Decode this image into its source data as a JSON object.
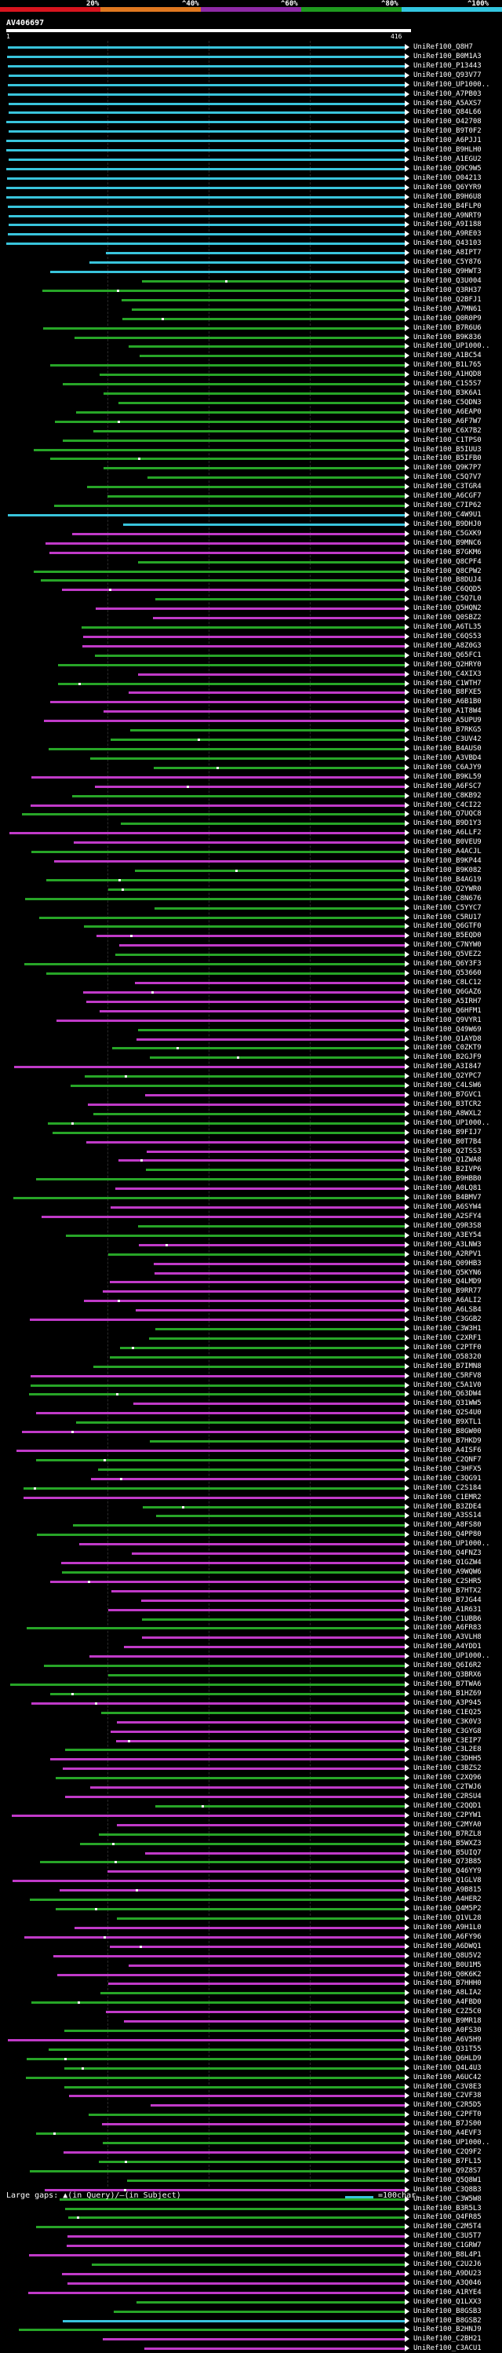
{
  "scale": {
    "labels": [
      "20%",
      "^40%",
      "^60%",
      "^80%",
      "^100%"
    ],
    "colors": [
      "#d9141e",
      "#e07820",
      "#8f2aa6",
      "#1f9a1f",
      "#33c6e0"
    ]
  },
  "query": {
    "name": "AV406697",
    "start": "1",
    "end": "416"
  },
  "colors": {
    "high": "#39c4dc",
    "mid": "#27a527",
    "low": "#c03ac8",
    "arrow": "#ffffff"
  },
  "hits": [
    "UniRef100_Q8H7",
    "UniRef100_B0M1A3",
    "UniRef100_P13443",
    "UniRef100_Q93V77",
    "UniRef100_UP1000..",
    "UniRef100_A7PB03",
    "UniRef100_A5AXS7",
    "UniRef100_Q84L66",
    "UniRef100_O42708",
    "UniRef100_B9T0F2",
    "UniRef100_A6PJJ1",
    "UniRef100_B9HLH0",
    "UniRef100_A1EGU2",
    "UniRef100_Q9C9W5",
    "UniRef100_O04213",
    "UniRef100_Q6YYR9",
    "UniRef100_B9H6U8",
    "UniRef100_B4FLP0",
    "UniRef100_A9NRT9",
    "UniRef100_A9I188",
    "UniRef100_A9RE03",
    "UniRef100_Q43103",
    "UniRef100_A8IPT7",
    "UniRef100_C5Y876",
    "UniRef100_Q9HWT3",
    "UniRef100_Q3U004",
    "UniRef100_Q3RH37",
    "UniRef100_Q2BFJ1",
    "UniRef100_A7MN61",
    "UniRef100_Q0R0P9",
    "UniRef100_B7R6U6",
    "UniRef100_B9K836",
    "UniRef100_UP1000..",
    "UniRef100_A1BC54",
    "UniRef100_B1L765",
    "UniRef100_A1HQD8",
    "UniRef100_C1S5S7",
    "UniRef100_B3K6A1",
    "UniRef100_C5QDN3",
    "UniRef100_A6EAP0",
    "UniRef100_A6F7W7",
    "UniRef100_C6X7B2",
    "UniRef100_C1TPS0",
    "UniRef100_B5IUU3",
    "UniRef100_B5IFB0",
    "UniRef100_Q9K7P7",
    "UniRef100_C5Q7V7",
    "UniRef100_C3TGR4",
    "UniRef100_A6CGF7",
    "UniRef100_C7IP62",
    "UniRef100_C4W9U1",
    "UniRef100_B9DHJ0",
    "UniRef100_C5GXK9",
    "UniRef100_B9MNC6",
    "UniRef100_B7GKM6",
    "UniRef100_Q8CPF4",
    "UniRef100_Q8CPW2",
    "UniRef100_B8DUJ4",
    "UniRef100_C6QQD5",
    "UniRef100_C5Q7L0",
    "UniRef100_Q5HQN2",
    "UniRef100_Q0SBZ2",
    "UniRef100_A6TL35",
    "UniRef100_C6QS53",
    "UniRef100_A8Z0G3",
    "UniRef100_Q65FC1",
    "UniRef100_Q2HRY0",
    "UniRef100_C4XIX3",
    "UniRef100_C1WTH7",
    "UniRef100_B8FXE5",
    "UniRef100_A6B1B0",
    "UniRef100_A1T8W4",
    "UniRef100_A5UPU9",
    "UniRef100_B7RKG5",
    "UniRef100_C3UV42",
    "UniRef100_B4AUS0",
    "UniRef100_A3VBD4",
    "UniRef100_C6AJY9",
    "UniRef100_B9KL59",
    "UniRef100_A6FSC7",
    "UniRef100_C8KB92",
    "UniRef100_C4CI22",
    "UniRef100_Q7UQC8",
    "UniRef100_B9D1Y3",
    "UniRef100_A6LLF2",
    "UniRef100_B0VEU9",
    "UniRef100_A4ACJL",
    "UniRef100_B9KP44",
    "UniRef100_B9K082",
    "UniRef100_B4AG19",
    "UniRef100_Q2YWR0",
    "UniRef100_C8N676",
    "UniRef100_C5YYC7",
    "UniRef100_C5RU17",
    "UniRef100_Q6GTF0",
    "UniRef100_B5EQD0",
    "UniRef100_C7NYW0",
    "UniRef100_Q5VEZ2",
    "UniRef100_Q6Y3F3",
    "UniRef100_Q53660",
    "UniRef100_C8LC12",
    "UniRef100_Q6GAZ6",
    "UniRef100_A5IRH7",
    "UniRef100_Q6HFM1",
    "UniRef100_Q9VYR1",
    "UniRef100_Q49W69",
    "UniRef100_Q1AYD8",
    "UniRef100_C0ZKT9",
    "UniRef100_B2GJF9",
    "UniRef100_A3I847",
    "UniRef100_Q2YPC7",
    "UniRef100_C4LSW6",
    "UniRef100_B7GVC1",
    "UniRef100_B3TCR2",
    "UniRef100_A8WXL2",
    "UniRef100_UP1000..",
    "UniRef100_B9FIJ7",
    "UniRef100_B0T7B4",
    "UniRef100_Q2TSS3",
    "UniRef100_Q1ZWA8",
    "UniRef100_B2IVP6",
    "UniRef100_B9HBB0",
    "UniRef100_A0LQ81",
    "UniRef100_B4BMV7",
    "UniRef100_A6SYW4",
    "UniRef100_A2SFY4",
    "UniRef100_Q9R3S8",
    "UniRef100_A3EY54",
    "UniRef100_A3LNW3",
    "UniRef100_A2RPV1",
    "UniRef100_Q09HB3",
    "UniRef100_Q5KYN6",
    "UniRef100_Q4LMD9",
    "UniRef100_B9RR77",
    "UniRef100_A6ALI2",
    "UniRef100_A6LSB4",
    "UniRef100_C3GGB2",
    "UniRef100_C3W3H1",
    "UniRef100_C2XRF1",
    "UniRef100_C2PTF0",
    "UniRef100_O58320",
    "UniRef100_B7IMN8",
    "UniRef100_C5RFV8",
    "UniRef100_C5A1V0",
    "UniRef100_Q63DW4",
    "UniRef100_Q31WW5",
    "UniRef100_Q2S4U0",
    "UniRef100_B9XTL1",
    "UniRef100_B8GW00",
    "UniRef100_B7HKD9",
    "UniRef100_A4ISF6",
    "UniRef100_C2QNF7",
    "UniRef100_C3HFX5",
    "UniRef100_C3QG91",
    "UniRef100_C2S184",
    "UniRef100_C1EMR2",
    "UniRef100_B3ZDE4",
    "UniRef100_A3SS14",
    "UniRef100_A8FS80",
    "UniRef100_Q4PP80",
    "UniRef100_UP1000..",
    "UniRef100_Q4FNZ3",
    "UniRef100_Q1GZW4",
    "UniRef100_A9WQW6",
    "UniRef100_C2SHR5",
    "UniRef100_B7HTX2",
    "UniRef100_B7JG44",
    "UniRef100_A1R631",
    "UniRef100_C1UBB6",
    "UniRef100_A6FR83",
    "UniRef100_A3VLH8",
    "UniRef100_A4YDD1",
    "UniRef100_UP1000..",
    "UniRef100_Q6I6R2",
    "UniRef100_Q3BRX6",
    "UniRef100_B7TWA6",
    "UniRef100_B1HZ69",
    "UniRef100_A3P945",
    "UniRef100_C1EQ25",
    "UniRef100_C3K0V3",
    "UniRef100_C3GYG8",
    "UniRef100_C3EIP7",
    "UniRef100_C3L2E8",
    "UniRef100_C3DHH5",
    "UniRef100_C3BZS2",
    "UniRef100_C2XQ96",
    "UniRef100_C2TWJ6",
    "UniRef100_C2RSU4",
    "UniRef100_C2QQD1",
    "UniRef100_C2PYW1",
    "UniRef100_C2MYA0",
    "UniRef100_B7RZL8",
    "UniRef100_B5WXZ3",
    "UniRef100_B5UIQ7",
    "UniRef100_Q73B85",
    "UniRef100_Q46YY9",
    "UniRef100_Q1GLV8",
    "UniRef100_A9B815",
    "UniRef100_A4HER2",
    "UniRef100_Q4M5P2",
    "UniRef100_Q1VL28",
    "UniRef100_A9H1L0",
    "UniRef100_A6FY96",
    "UniRef100_A6DWQ1",
    "UniRef100_Q8U5V2",
    "UniRef100_B0U1M5",
    "UniRef100_Q0K6K2",
    "UniRef100_B7HHH0",
    "UniRef100_A8LIA2",
    "UniRef100_A4FBD0",
    "UniRef100_C2Z5C0",
    "UniRef100_B9MR18",
    "UniRef100_A0FS30",
    "UniRef100_A6V5H9",
    "UniRef100_Q31T55",
    "UniRef100_Q6HLD9",
    "UniRef100_Q4L4U3",
    "UniRef100_A6UC42",
    "UniRef100_C3V8E3",
    "UniRef100_C2VF38",
    "UniRef100_C2R5D5",
    "UniRef100_C2PFT0",
    "UniRef100_B7JS00",
    "UniRef100_A4EVF3",
    "UniRef100_UP1000..",
    "UniRef100_C2Q9F2",
    "UniRef100_B7FL15",
    "UniRef100_Q9Z8S7",
    "UniRef100_Q5Q8W1",
    "UniRef100_C3Q8B3",
    "UniRef100_C3W5W8",
    "UniRef100_B3R5L3",
    "UniRef100_Q4FR85",
    "UniRef100_C2M5T4",
    "UniRef100_C3U5T7",
    "UniRef100_C1GRW7",
    "UniRef100_B8L4P1",
    "UniRef100_C2U2J6",
    "UniRef100_A9DU23",
    "UniRef100_A3Q046",
    "UniRef100_A1RYE4",
    "UniRef100_Q1LXX3",
    "UniRef100_B8GSB3",
    "UniRef100_B8GSB2",
    "UniRef100_B2HNJ9",
    "UniRef100_C2BH21",
    "UniRef100_C3ACU1"
  ],
  "legend": {
    "text": "Large gaps: ▲(in Query)/—(in Subject)",
    "right": "=100char."
  }
}
